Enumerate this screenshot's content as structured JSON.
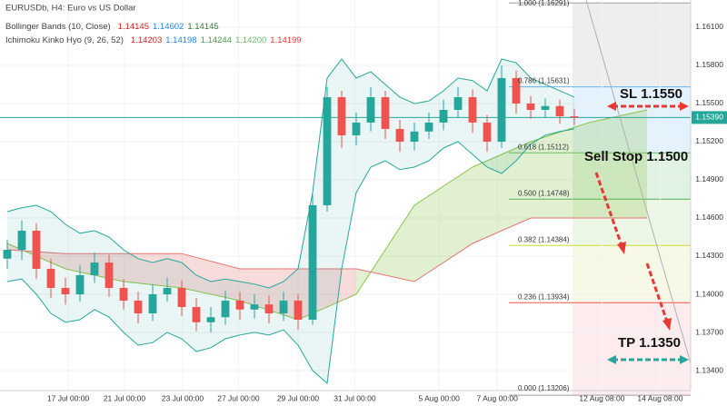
{
  "chart_data": {
    "type": "candlestick",
    "title": "EURUSDb, H4: Euro vs US Dollar",
    "indicators": [
      {
        "name": "Bollinger Bands (10, Close)",
        "values": [
          "1.14145",
          "1.14602",
          "1.14145"
        ],
        "colors": [
          "#c62828",
          "#1e88e5",
          "#2e7d32"
        ]
      },
      {
        "name": "Ichimoku Kinko Hyo (9, 26, 52)",
        "values": [
          "1.14203",
          "1.14198",
          "1.14244",
          "1.14200",
          "1.14199"
        ],
        "colors": [
          "#c62828",
          "#1e88e5",
          "#43a047",
          "#66bb6a",
          "#e53935"
        ]
      }
    ],
    "x": [
      0,
      1,
      2,
      3,
      4,
      5,
      6,
      7,
      8,
      9,
      10,
      11,
      12,
      13,
      14,
      15,
      16,
      17,
      18,
      19,
      20,
      21,
      22,
      23,
      24,
      25,
      26,
      27,
      28,
      29,
      30,
      31,
      32,
      33,
      34,
      35,
      36,
      37,
      38,
      39
    ],
    "open": [
      1.1428,
      1.1435,
      1.145,
      1.142,
      1.1405,
      1.14,
      1.1415,
      1.1425,
      1.1405,
      1.1395,
      1.1385,
      1.14,
      1.1405,
      1.139,
      1.1378,
      1.1382,
      1.1395,
      1.1388,
      1.1392,
      1.1385,
      1.1395,
      1.138,
      1.147,
      1.1555,
      1.1525,
      1.1535,
      1.1555,
      1.153,
      1.152,
      1.1528,
      1.1535,
      1.1545,
      1.1555,
      1.1535,
      1.152,
      1.157,
      1.155,
      1.1545,
      1.1548,
      1.154
    ],
    "high": [
      1.1443,
      1.1458,
      1.1456,
      1.1428,
      1.1413,
      1.1423,
      1.1433,
      1.1431,
      1.1412,
      1.1402,
      1.1408,
      1.1413,
      1.1411,
      1.1397,
      1.139,
      1.1403,
      1.1402,
      1.14,
      1.1399,
      1.1402,
      1.14,
      1.1478,
      1.1563,
      1.156,
      1.1543,
      1.1563,
      1.156,
      1.1537,
      1.1535,
      1.1543,
      1.1553,
      1.1563,
      1.1561,
      1.1541,
      1.158,
      1.1576,
      1.1556,
      1.1554,
      1.1553,
      1.1546
    ],
    "low": [
      1.142,
      1.1427,
      1.1412,
      1.1397,
      1.1392,
      1.1394,
      1.1409,
      1.1398,
      1.1388,
      1.1377,
      1.1379,
      1.1394,
      1.1383,
      1.1371,
      1.137,
      1.1376,
      1.138,
      1.1381,
      1.1377,
      1.1379,
      1.1372,
      1.1376,
      1.1465,
      1.1515,
      1.1517,
      1.1528,
      1.1522,
      1.1512,
      1.1513,
      1.1522,
      1.1529,
      1.1539,
      1.1527,
      1.1512,
      1.1515,
      1.1542,
      1.1538,
      1.1539,
      1.1534,
      1.1533
    ],
    "close": [
      1.1435,
      1.145,
      1.142,
      1.1405,
      1.14,
      1.1415,
      1.1425,
      1.1405,
      1.1395,
      1.1385,
      1.14,
      1.1405,
      1.139,
      1.1378,
      1.1382,
      1.1395,
      1.1388,
      1.1392,
      1.1385,
      1.1395,
      1.138,
      1.147,
      1.1555,
      1.1525,
      1.1535,
      1.1555,
      1.153,
      1.152,
      1.1528,
      1.1535,
      1.1545,
      1.1555,
      1.1535,
      1.152,
      1.157,
      1.155,
      1.1545,
      1.1548,
      1.154,
      1.1539
    ],
    "up_color": "#26a69a",
    "down_color": "#ef5350",
    "xlim": [
      -0.5,
      47
    ],
    "xticks": [
      {
        "value": 4.19,
        "label": "17 Jul 00:00"
      },
      {
        "value": 8.06,
        "label": "21 Jul 00:00"
      },
      {
        "value": 12.06,
        "label": "23 Jul 00:00"
      },
      {
        "value": 15.9,
        "label": "27 Jul 00:00"
      },
      {
        "value": 20,
        "label": "29 Jul 00:00"
      },
      {
        "value": 23.9,
        "label": "31 Jul 00:00"
      },
      {
        "value": 29.7,
        "label": "5 Aug 00:00"
      },
      {
        "value": 33.7,
        "label": "7 Aug 00:00"
      },
      {
        "value": 40.9,
        "label": "12 Aug 08:00"
      },
      {
        "value": 44.9,
        "label": "14 Aug 08:00"
      }
    ],
    "ylim": [
      1.13243,
      1.16314
    ],
    "yticks": [
      {
        "value": 1.161,
        "label": "1.16100"
      },
      {
        "value": 1.158,
        "label": "1.15800"
      },
      {
        "value": 1.155,
        "label": "1.15500"
      },
      {
        "value": 1.152,
        "label": "1.15200"
      },
      {
        "value": 1.149,
        "label": "1.14900"
      },
      {
        "value": 1.146,
        "label": "1.14600"
      },
      {
        "value": 1.143,
        "label": "1.14300"
      },
      {
        "value": 1.14,
        "label": "1.14000"
      },
      {
        "value": 1.137,
        "label": "1.13700"
      },
      {
        "value": 1.134,
        "label": "1.13400"
      }
    ],
    "bollinger": {
      "color": "#26a69a",
      "upper": [
        1.1465,
        1.1468,
        1.147,
        1.1465,
        1.1455,
        1.1448,
        1.145,
        1.1445,
        1.1435,
        1.1428,
        1.1425,
        1.1428,
        1.1425,
        1.1415,
        1.141,
        1.1412,
        1.141,
        1.1408,
        1.1405,
        1.141,
        1.142,
        1.148,
        1.157,
        1.1585,
        1.157,
        1.1575,
        1.1565,
        1.1555,
        1.155,
        1.1552,
        1.156,
        1.157,
        1.1568,
        1.156,
        1.1585,
        1.1582,
        1.157,
        1.1565,
        1.156,
        1.1555
      ],
      "lower": [
        1.141,
        1.1412,
        1.14,
        1.1385,
        1.1378,
        1.138,
        1.1388,
        1.1382,
        1.137,
        1.136,
        1.1362,
        1.137,
        1.1365,
        1.1355,
        1.1358,
        1.1365,
        1.1368,
        1.137,
        1.1368,
        1.1372,
        1.136,
        1.134,
        1.133,
        1.142,
        1.148,
        1.15,
        1.1505,
        1.1498,
        1.15,
        1.1505,
        1.1515,
        1.152,
        1.151,
        1.15,
        1.1495,
        1.1505,
        1.1518,
        1.1525,
        1.1528,
        1.153
      ]
    },
    "cloud": {
      "x": [
        0,
        4,
        8,
        12,
        16,
        20,
        24,
        28,
        32,
        36,
        40,
        44
      ],
      "span_a": [
        1.144,
        1.142,
        1.141,
        1.1405,
        1.1395,
        1.138,
        1.14,
        1.147,
        1.15,
        1.152,
        1.1535,
        1.1545
      ],
      "span_b": [
        1.1435,
        1.1432,
        1.1432,
        1.1432,
        1.142,
        1.142,
        1.142,
        1.141,
        1.144,
        1.146,
        1.146,
        1.146
      ],
      "a_color": "#8bc34a",
      "b_color": "#e57373"
    },
    "fib": [
      {
        "label": "1.000 (1.16291)",
        "price": 1.16291,
        "color": "#9e9e9e",
        "fill": "#eeeeee"
      },
      {
        "label": "0.786 (1.15631)",
        "price": 1.15631,
        "color": "#64b5f6",
        "fill": "#e3f2fd"
      },
      {
        "label": "0.618 (1.15112)",
        "price": 1.15112,
        "color": "#66bb6a",
        "fill": "#e0f2e1"
      },
      {
        "label": "0.500 (1.14748)",
        "price": 1.14748,
        "color": "#4caf50",
        "fill": "#edf7e5"
      },
      {
        "label": "0.382 (1.14384)",
        "price": 1.14384,
        "color": "#cddc39",
        "fill": "#f7f9e6"
      },
      {
        "label": "0.236 (1.13934)",
        "price": 1.13934,
        "color": "#ef5350",
        "fill": "#fdecee"
      },
      {
        "label": "0.000 (1.13206)",
        "price": 1.13206,
        "color": "#9e9e9e",
        "fill": "#fdecee"
      }
    ],
    "last_price": {
      "value": 1.1539,
      "label": "1.15390",
      "color": "#26a69a"
    },
    "annotations": [
      "SL 1.1550",
      "Sell Stop 1.1500",
      "TP 1.1350"
    ]
  }
}
